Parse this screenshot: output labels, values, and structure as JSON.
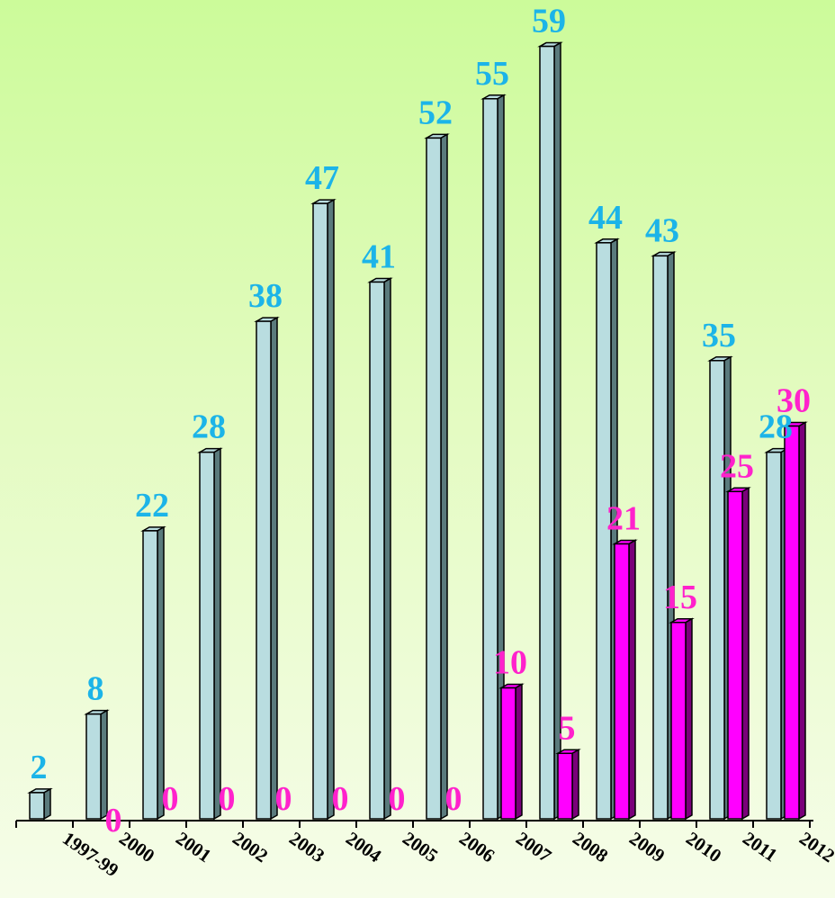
{
  "chart_data": {
    "type": "bar",
    "categories": [
      "1997-99",
      "2000",
      "2001",
      "2002",
      "2003",
      "2004",
      "2005",
      "2006",
      "2007",
      "2008",
      "2009",
      "2010",
      "2011",
      "2012"
    ],
    "series": [
      {
        "values": [
          2,
          8,
          22,
          28,
          38,
          47,
          41,
          52,
          55,
          59,
          44,
          43,
          35,
          28
        ],
        "color": "#b9dde0",
        "label_color": "#1cb4e8"
      },
      {
        "values": [
          null,
          0,
          0,
          0,
          0,
          0,
          0,
          0,
          10,
          5,
          21,
          15,
          25,
          30
        ],
        "color": "#ff00ff",
        "label_color": "#ff22cc"
      }
    ],
    "ylim": [
      0,
      60
    ],
    "grid": false,
    "legend": "none",
    "style": "3d-columns"
  }
}
